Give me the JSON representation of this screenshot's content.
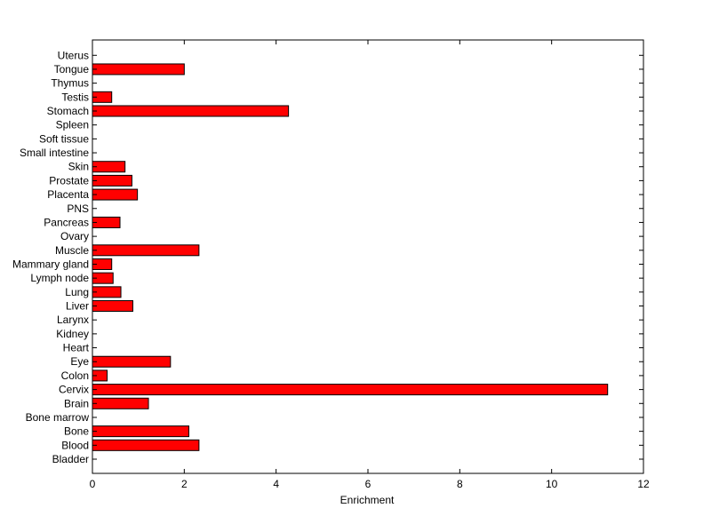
{
  "chart_data": {
    "type": "bar",
    "orientation": "horizontal",
    "title": "",
    "xlabel": "Enrichment",
    "ylabel": "",
    "xlim": [
      0,
      12
    ],
    "xticks": [
      "0",
      "2",
      "4",
      "6",
      "8",
      "10",
      "12"
    ],
    "grid": false,
    "legend": "none",
    "bar_color": "#ff0000",
    "bar_edge_color": "#000000",
    "categories": [
      "Bladder",
      "Blood",
      "Bone",
      "Bone marrow",
      "Brain",
      "Cervix",
      "Colon",
      "Eye",
      "Heart",
      "Kidney",
      "Larynx",
      "Liver",
      "Lung",
      "Lymph node",
      "Mammary gland",
      "Muscle",
      "Ovary",
      "Pancreas",
      "PNS",
      "Placenta",
      "Prostate",
      "Skin",
      "Small intestine",
      "Soft tissue",
      "Spleen",
      "Stomach",
      "Testis",
      "Thymus",
      "Tongue",
      "Uterus"
    ],
    "values": [
      0,
      2.32,
      2.1,
      0,
      1.22,
      11.22,
      0.32,
      1.7,
      0,
      0,
      0,
      0.88,
      0.62,
      0.45,
      0.42,
      2.32,
      0,
      0.6,
      0,
      0.98,
      0.86,
      0.71,
      0,
      0,
      0,
      4.27,
      0.42,
      0,
      2.0,
      0
    ]
  }
}
